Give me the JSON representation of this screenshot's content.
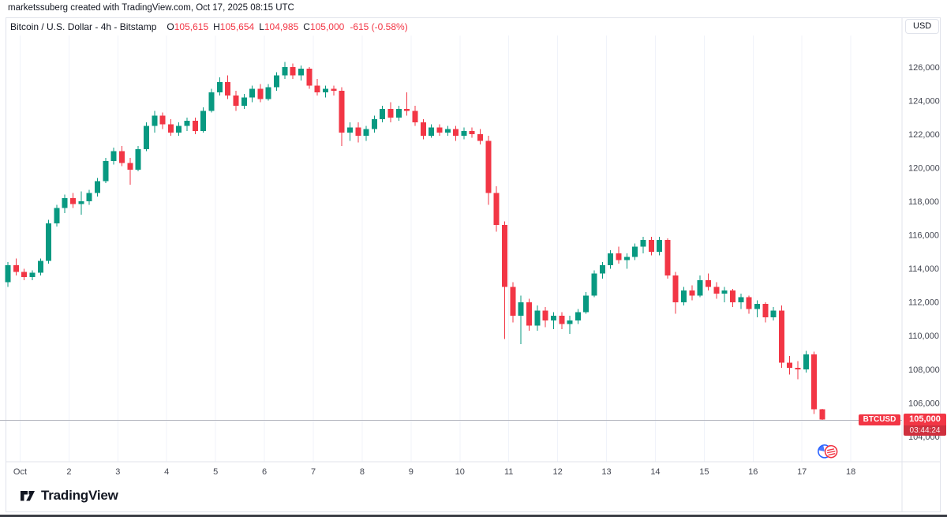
{
  "watermark": "marketssuberg created with TradingView.com, Oct 17, 2025 08:15 UTC",
  "legend": {
    "series_title": "Bitcoin / U.S. Dollar - 4h - Bitstamp",
    "items": [
      {
        "label": "O",
        "value": "105,615"
      },
      {
        "label": "H",
        "value": "105,654"
      },
      {
        "label": "L",
        "value": "104,985"
      },
      {
        "label": "C",
        "value": "105,000"
      }
    ],
    "change": "-615 (-0.58%)"
  },
  "currency_button": "USD",
  "price_label": {
    "symbol": "BTCUSD",
    "price": "105,000",
    "countdown": "03:44:24"
  },
  "logo_text": "TradingView",
  "colors": {
    "up": "#089981",
    "down": "#f23645",
    "countdown_bg": "#cf303e",
    "grid": "#f0f3fa",
    "border": "#e0e3eb",
    "axis_text": "#434651",
    "price_line": "#b2b5be",
    "text": "#131722"
  },
  "chart_data": {
    "type": "candlestick",
    "title": "Bitcoin / U.S. Dollar - 4h - Bitstamp",
    "symbol": "BTCUSD",
    "interval": "4h",
    "exchange": "Bitstamp",
    "ylabel": "USD",
    "grid": "vertical-only",
    "ylim": [
      102500,
      127900
    ],
    "y_ticks": [
      126000,
      124000,
      122000,
      120000,
      118000,
      116000,
      114000,
      112000,
      110000,
      108000,
      106000,
      104000
    ],
    "x_ticks": [
      {
        "label": "Oct",
        "index": 1.5
      },
      {
        "label": "2",
        "index": 7.5
      },
      {
        "label": "3",
        "index": 13.5
      },
      {
        "label": "4",
        "index": 19.5
      },
      {
        "label": "5",
        "index": 25.5
      },
      {
        "label": "6",
        "index": 31.5
      },
      {
        "label": "7",
        "index": 37.5
      },
      {
        "label": "8",
        "index": 43.5
      },
      {
        "label": "9",
        "index": 49.5
      },
      {
        "label": "10",
        "index": 55.5
      },
      {
        "label": "11",
        "index": 61.5
      },
      {
        "label": "12",
        "index": 67.5
      },
      {
        "label": "13",
        "index": 73.5
      },
      {
        "label": "14",
        "index": 79.5
      },
      {
        "label": "15",
        "index": 85.5
      },
      {
        "label": "16",
        "index": 91.5
      },
      {
        "label": "17",
        "index": 97.5
      },
      {
        "label": "18",
        "index": 103.5
      }
    ],
    "price_line": 105000,
    "last_ohlc": {
      "open": 105615,
      "high": 105654,
      "low": 104985,
      "close": 105000,
      "change": -615,
      "change_pct": -0.58
    },
    "candles": [
      [
        113200,
        114400,
        112900,
        114200
      ],
      [
        114200,
        114600,
        113600,
        113800
      ],
      [
        113800,
        114000,
        113300,
        113500
      ],
      [
        113500,
        113900,
        113300,
        113750
      ],
      [
        113750,
        114600,
        113600,
        114450
      ],
      [
        114450,
        116900,
        114300,
        116700
      ],
      [
        116700,
        117800,
        116500,
        117600
      ],
      [
        117600,
        118400,
        117300,
        118200
      ],
      [
        118200,
        118500,
        117600,
        117850
      ],
      [
        117850,
        118600,
        117200,
        118000
      ],
      [
        118000,
        118700,
        117800,
        118500
      ],
      [
        118500,
        119400,
        118300,
        119200
      ],
      [
        119200,
        120600,
        119100,
        120400
      ],
      [
        120400,
        121200,
        120200,
        121000
      ],
      [
        121000,
        121300,
        120100,
        120300
      ],
      [
        120300,
        120600,
        119000,
        119900
      ],
      [
        119900,
        121300,
        119800,
        121100
      ],
      [
        121100,
        122700,
        121000,
        122500
      ],
      [
        122500,
        123400,
        122100,
        123100
      ],
      [
        123100,
        123300,
        122300,
        122600
      ],
      [
        122600,
        122900,
        121900,
        122100
      ],
      [
        122100,
        122700,
        121900,
        122500
      ],
      [
        122500,
        123000,
        122200,
        122800
      ],
      [
        122800,
        123000,
        122000,
        122200
      ],
      [
        122200,
        123600,
        122100,
        123400
      ],
      [
        123400,
        124700,
        123300,
        124500
      ],
      [
        124500,
        125400,
        124300,
        125100
      ],
      [
        125100,
        125500,
        124100,
        124300
      ],
      [
        124300,
        124600,
        123400,
        123700
      ],
      [
        123700,
        124400,
        123500,
        124200
      ],
      [
        124200,
        124900,
        123900,
        124700
      ],
      [
        124700,
        125000,
        123900,
        124100
      ],
      [
        124100,
        125000,
        124000,
        124800
      ],
      [
        124800,
        125700,
        124600,
        125500
      ],
      [
        125500,
        126300,
        125300,
        126000
      ],
      [
        126000,
        126200,
        125300,
        125500
      ],
      [
        125500,
        126100,
        125200,
        125900
      ],
      [
        125900,
        126000,
        124700,
        124900
      ],
      [
        124900,
        125300,
        124300,
        124500
      ],
      [
        124500,
        124900,
        124200,
        124700
      ],
      [
        124700,
        124900,
        124300,
        124600
      ],
      [
        124600,
        124800,
        121300,
        122100
      ],
      [
        122100,
        122700,
        121600,
        122400
      ],
      [
        122400,
        122700,
        121500,
        121900
      ],
      [
        121900,
        122500,
        121600,
        122300
      ],
      [
        122300,
        123100,
        122100,
        122900
      ],
      [
        122900,
        123700,
        122700,
        123500
      ],
      [
        123500,
        123900,
        122700,
        123000
      ],
      [
        123000,
        123700,
        122800,
        123500
      ],
      [
        123500,
        124500,
        123100,
        123400
      ],
      [
        123400,
        123700,
        122500,
        122700
      ],
      [
        122700,
        122900,
        121700,
        121900
      ],
      [
        121900,
        122600,
        121800,
        122400
      ],
      [
        122400,
        122600,
        121900,
        122100
      ],
      [
        122100,
        122500,
        121900,
        122300
      ],
      [
        122300,
        122500,
        121600,
        121900
      ],
      [
        121900,
        122400,
        121700,
        122200
      ],
      [
        122200,
        122400,
        121800,
        122000
      ],
      [
        122000,
        122300,
        121400,
        121600
      ],
      [
        121600,
        121900,
        117800,
        118500
      ],
      [
        118500,
        118900,
        116200,
        116600
      ],
      [
        116600,
        116800,
        109800,
        112900
      ],
      [
        112900,
        113200,
        110800,
        111200
      ],
      [
        111200,
        112400,
        109500,
        112000
      ],
      [
        112000,
        112200,
        110300,
        110600
      ],
      [
        110600,
        111800,
        110300,
        111500
      ],
      [
        111500,
        111700,
        110500,
        110900
      ],
      [
        110900,
        111400,
        110400,
        111200
      ],
      [
        111200,
        111400,
        110400,
        110700
      ],
      [
        110700,
        111200,
        110100,
        110900
      ],
      [
        110900,
        111600,
        110700,
        111400
      ],
      [
        111400,
        112600,
        111300,
        112400
      ],
      [
        112400,
        113900,
        112300,
        113700
      ],
      [
        113700,
        114400,
        113400,
        114200
      ],
      [
        114200,
        115100,
        114000,
        114900
      ],
      [
        114900,
        115300,
        114300,
        114500
      ],
      [
        114500,
        114900,
        114000,
        114700
      ],
      [
        114700,
        115500,
        114500,
        115300
      ],
      [
        115300,
        115900,
        114900,
        115700
      ],
      [
        115700,
        115900,
        114800,
        115000
      ],
      [
        115000,
        115900,
        114800,
        115700
      ],
      [
        115700,
        115800,
        113400,
        113600
      ],
      [
        113600,
        113800,
        111300,
        112000
      ],
      [
        112000,
        112900,
        111800,
        112700
      ],
      [
        112700,
        113000,
        112100,
        112400
      ],
      [
        112400,
        113600,
        112300,
        113300
      ],
      [
        113300,
        113700,
        112700,
        112900
      ],
      [
        112900,
        113200,
        112200,
        112500
      ],
      [
        112500,
        112900,
        112000,
        112700
      ],
      [
        112700,
        112800,
        111700,
        112000
      ],
      [
        112000,
        112500,
        111600,
        112300
      ],
      [
        112300,
        112400,
        111300,
        111600
      ],
      [
        111600,
        112100,
        111100,
        111900
      ],
      [
        111900,
        112000,
        110800,
        111100
      ],
      [
        111100,
        111700,
        110900,
        111500
      ],
      [
        111500,
        111800,
        108100,
        108400
      ],
      [
        108400,
        108800,
        107700,
        108100
      ],
      [
        108100,
        108500,
        107400,
        108000
      ],
      [
        108000,
        109100,
        107800,
        108900
      ],
      [
        108900,
        109050,
        105350,
        105615
      ],
      [
        105615,
        105654,
        104985,
        105000
      ]
    ]
  }
}
